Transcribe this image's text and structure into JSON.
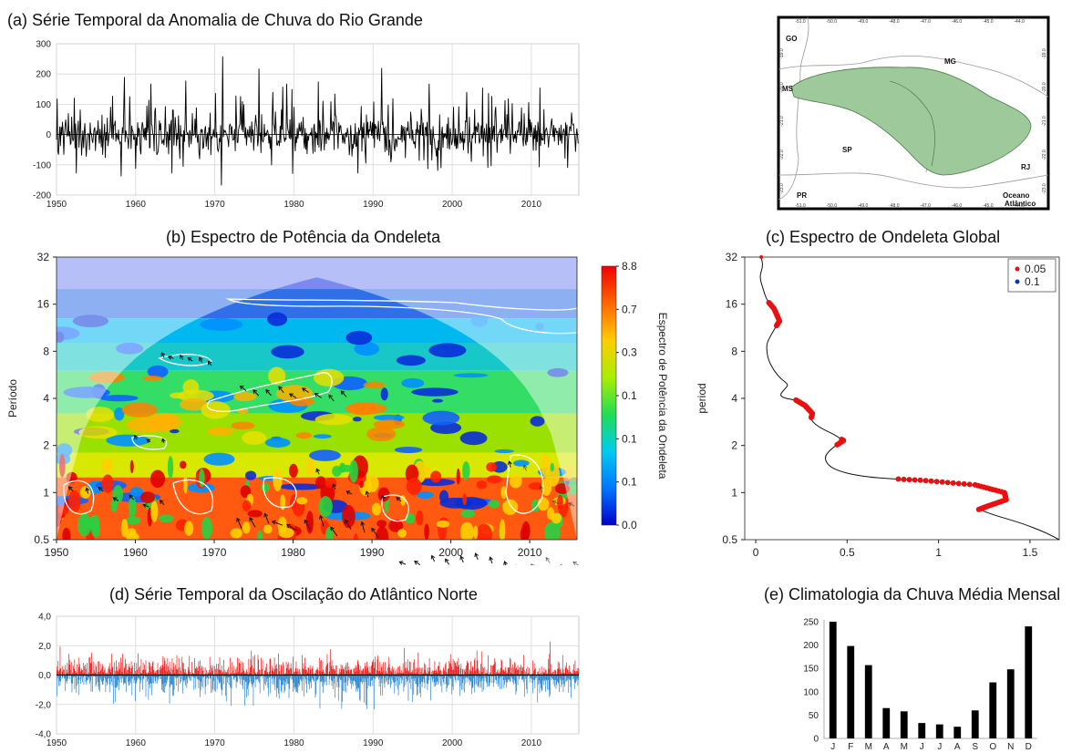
{
  "panels": {
    "a": {
      "title": "(a) Série Temporal da Anomalia de Chuva do Rio Grande"
    },
    "b": {
      "title": "(b) Espectro de Potência da Ondeleta"
    },
    "c": {
      "title": "(c) Espectro de Ondeleta Global"
    },
    "d": {
      "title": "(d) Série Temporal da Oscilação do Atlântico Norte"
    },
    "e": {
      "title": "(e) Climatologia da Chuva Média Mensal"
    }
  },
  "map": {
    "state_labels": [
      "GO",
      "MS",
      "MG",
      "SP",
      "RJ",
      "PR"
    ],
    "ocean_label_1": "Oceano",
    "ocean_label_2": "Atlântico",
    "lon_ticks": [
      "-51.0",
      "-50.0",
      "-49.0",
      "-48.0",
      "-47.0",
      "-46.0",
      "-45.0",
      "-44.0"
    ],
    "lat_ticks": [
      "-19.0",
      "-20.0",
      "-21.0",
      "-22.0",
      "-23.0"
    ],
    "basin_color": "#9dc99b"
  },
  "chart_data": [
    {
      "id": "a",
      "type": "line",
      "title": "(a) Série Temporal da Anomalia de Chuva do Rio Grande",
      "xlim": [
        1950,
        2016
      ],
      "ylim": [
        -200,
        300
      ],
      "xticks": [
        1950,
        1960,
        1970,
        1980,
        1990,
        2000,
        2010
      ],
      "yticks": [
        -200,
        -100,
        0,
        100,
        200,
        300
      ],
      "grid": true,
      "color": "#000000",
      "series_note": "monthly anomaly",
      "peaks": [
        [
          1958.6,
          190
        ],
        [
          1961.9,
          168
        ],
        [
          1966.3,
          178
        ],
        [
          1971.0,
          258
        ],
        [
          1975.6,
          218
        ],
        [
          1979.1,
          168
        ],
        [
          1983.1,
          175
        ],
        [
          1985.2,
          135
        ],
        [
          1991.1,
          220
        ],
        [
          1997.1,
          168
        ],
        [
          2003.8,
          155
        ],
        [
          2011.1,
          155
        ]
      ],
      "troughs": [
        [
          1952.5,
          -128
        ],
        [
          1958.2,
          -138
        ],
        [
          1964.6,
          -128
        ],
        [
          1970.8,
          -168
        ],
        [
          1979.8,
          -130
        ],
        [
          1988.1,
          -128
        ],
        [
          1998.2,
          -120
        ],
        [
          2004.5,
          -110
        ],
        [
          2014.6,
          -110
        ]
      ]
    },
    {
      "id": "b",
      "type": "heatmap",
      "title": "(b) Espectro de Potência da Ondeleta",
      "ylabel": "Período",
      "xlim": [
        1950,
        2016
      ],
      "xticks": [
        1950,
        1960,
        1970,
        1980,
        1990,
        2000,
        2010
      ],
      "yticks": [
        "0.5",
        "1",
        "2",
        "4",
        "8",
        "16",
        "32"
      ],
      "yscale": "log2",
      "ylim": [
        0.5,
        32
      ],
      "colorbar": {
        "label": "Espectro de Potência da Ondeleta",
        "ticks": [
          "0.0",
          "0.1",
          "0.1",
          "0.1",
          "0.3",
          "0.7",
          "8.8"
        ],
        "colors": [
          "#0000cc",
          "#0077ff",
          "#00ccee",
          "#22dd55",
          "#aaee00",
          "#ffcc00",
          "#ff6600",
          "#ee0000"
        ]
      }
    },
    {
      "id": "c",
      "type": "line",
      "title": "(c) Espectro de Ondeleta Global",
      "ylabel": "period",
      "xlim": [
        -0.06,
        1.66
      ],
      "ylim": [
        0.5,
        32
      ],
      "yscale": "log2",
      "xticks": [
        "0",
        "0.5",
        "1",
        "1.5"
      ],
      "yticks": [
        "0.5",
        "1",
        "2",
        "4",
        "8",
        "16",
        "32"
      ],
      "legend": [
        {
          "label": "0.05",
          "color": "#e81010"
        },
        {
          "label": "0.1",
          "color": "#1030c8"
        }
      ],
      "legend_position": "top-right",
      "x": [
        0.03,
        0.04,
        0.02,
        0.04,
        0.06,
        0.1,
        0.13,
        0.09,
        0.06,
        0.06,
        0.07,
        0.1,
        0.14,
        0.18,
        0.16,
        0.13,
        0.16,
        0.22,
        0.27,
        0.31,
        0.3,
        0.35,
        0.43,
        0.48,
        0.41,
        0.37,
        0.42,
        0.6,
        0.9,
        1.2,
        1.36,
        1.37,
        1.27,
        1.22,
        1.3,
        1.45,
        1.58,
        1.66
      ],
      "y": [
        32,
        28,
        24,
        20,
        17,
        15,
        12.5,
        10.5,
        9,
        8,
        7,
        6,
        5.3,
        4.9,
        4.6,
        4.2,
        4.0,
        3.9,
        3.6,
        3.2,
        2.9,
        2.6,
        2.35,
        2.15,
        1.9,
        1.65,
        1.4,
        1.25,
        1.2,
        1.12,
        1.0,
        0.9,
        0.82,
        0.78,
        0.72,
        0.64,
        0.56,
        0.5
      ],
      "significant_005_y_ranges": [
        [
          11.5,
          16.5
        ],
        [
          3.0,
          3.9
        ],
        [
          2.0,
          2.2
        ],
        [
          0.78,
          1.22
        ]
      ]
    },
    {
      "id": "d",
      "type": "bar",
      "title": "(d) Série Temporal da Oscilação do Atlântico Norte",
      "xlim": [
        1950,
        2016
      ],
      "ylim": [
        -4.0,
        4.0
      ],
      "xticks": [
        1950,
        1960,
        1970,
        1980,
        1990,
        2000,
        2010
      ],
      "yticks": [
        "-4,0",
        "-2,0",
        "0,0",
        "2,0",
        "4,0"
      ],
      "grid": true,
      "positive_color": "#e81010",
      "negative_color": "#1f7bc8"
    },
    {
      "id": "e",
      "type": "bar",
      "title": "(e) Climatologia da Chuva Média Mensal",
      "categories": [
        "J",
        "F",
        "M",
        "A",
        "M",
        "J",
        "J",
        "A",
        "S",
        "O",
        "N",
        "D"
      ],
      "values": [
        250,
        198,
        157,
        65,
        58,
        33,
        30,
        25,
        60,
        120,
        148,
        240
      ],
      "ylim": [
        0,
        250
      ],
      "yticks": [
        0,
        50,
        100,
        150,
        200,
        250
      ],
      "color": "#000000"
    }
  ]
}
